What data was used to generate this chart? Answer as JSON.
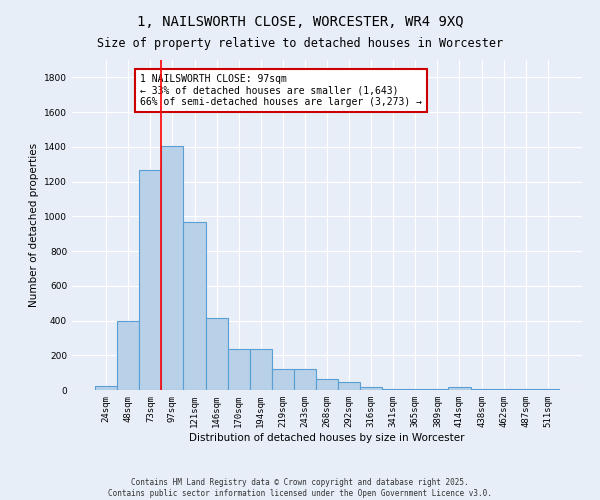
{
  "title_line1": "1, NAILSWORTH CLOSE, WORCESTER, WR4 9XQ",
  "title_line2": "Size of property relative to detached houses in Worcester",
  "xlabel": "Distribution of detached houses by size in Worcester",
  "ylabel": "Number of detached properties",
  "categories": [
    "24sqm",
    "48sqm",
    "73sqm",
    "97sqm",
    "121sqm",
    "146sqm",
    "170sqm",
    "194sqm",
    "219sqm",
    "243sqm",
    "268sqm",
    "292sqm",
    "316sqm",
    "341sqm",
    "365sqm",
    "389sqm",
    "414sqm",
    "438sqm",
    "462sqm",
    "487sqm",
    "511sqm"
  ],
  "values": [
    25,
    400,
    1265,
    1405,
    965,
    415,
    235,
    235,
    120,
    120,
    65,
    45,
    18,
    5,
    5,
    5,
    15,
    5,
    5,
    5,
    5
  ],
  "bar_color": "#b8d0e8",
  "bar_edge_color": "#5a9fd4",
  "bar_linewidth": 0.8,
  "red_line_index": 3,
  "annotation_text": "1 NAILSWORTH CLOSE: 97sqm\n← 33% of detached houses are smaller (1,643)\n66% of semi-detached houses are larger (3,273) →",
  "annotation_box_color": "#ffffff",
  "annotation_border_color": "#cc0000",
  "ylim": [
    0,
    1900
  ],
  "yticks": [
    0,
    200,
    400,
    600,
    800,
    1000,
    1200,
    1400,
    1600,
    1800
  ],
  "background_color": "#e8eef8",
  "grid_color": "#ffffff",
  "footer_line1": "Contains HM Land Registry data © Crown copyright and database right 2025.",
  "footer_line2": "Contains public sector information licensed under the Open Government Licence v3.0.",
  "title_fontsize": 10,
  "subtitle_fontsize": 8.5,
  "axis_label_fontsize": 7.5,
  "tick_fontsize": 6.5,
  "annotation_fontsize": 7,
  "footer_fontsize": 5.5
}
